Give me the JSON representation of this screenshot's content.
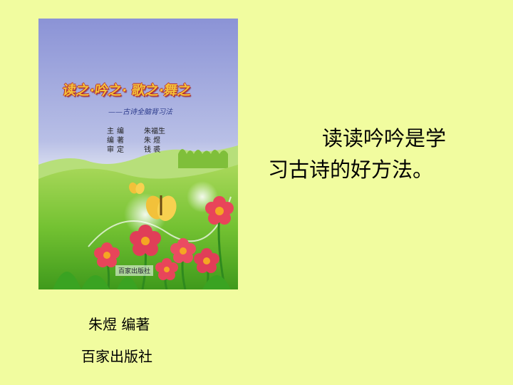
{
  "slide": {
    "background": "#f1fc9f",
    "main_text_line1": "读读吟吟是学",
    "main_text_line2": "习古诗的好方法。",
    "author_label": "朱煜   编著",
    "publisher_label": "百家出版社"
  },
  "book_cover": {
    "title": "读之·吟之· 歌之·舞之",
    "subtitle": "——古诗全脑背习法",
    "credits": [
      {
        "role": "主编",
        "name": "朱福生"
      },
      {
        "role": "编著",
        "name": "朱 煜"
      },
      {
        "role": "审定",
        "name": "钱 裘"
      }
    ],
    "publisher_mark": "百家出版社",
    "colors": {
      "sky_top": "#8e98d8",
      "sky_bottom": "#dde6f2",
      "grass": "#6fbf2c",
      "flower": "#e8455a",
      "butterfly": "#f2c13a",
      "title_fill": "#f2c23a",
      "title_outline": "#b8252c"
    }
  }
}
